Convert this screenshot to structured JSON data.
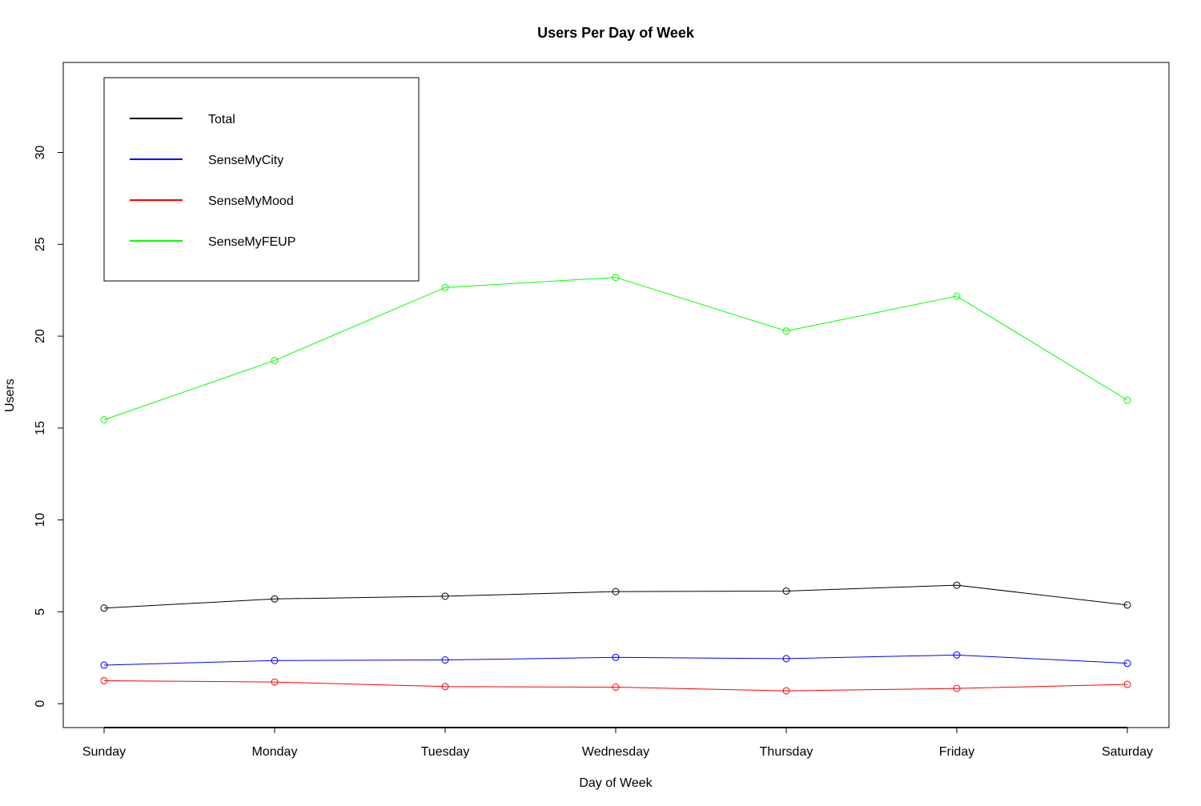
{
  "chart_data": {
    "type": "line",
    "title": "Users Per Day of Week",
    "xlabel": "Day of Week",
    "ylabel": "Users",
    "categories": [
      "Sunday",
      "Monday",
      "Tuesday",
      "Wednesday",
      "Thursday",
      "Friday",
      "Saturday"
    ],
    "ylim": [
      -1.3,
      34.9
    ],
    "yticks": [
      0,
      5,
      10,
      15,
      20,
      25,
      30
    ],
    "grid": false,
    "legend_position": "top-left",
    "markers": "open-circle",
    "series": [
      {
        "name": "Total",
        "color": "#000000",
        "values": [
          5.2,
          5.7,
          5.85,
          6.1,
          6.13,
          6.45,
          5.37
        ]
      },
      {
        "name": "SenseMyCity",
        "color": "#0000ff",
        "values": [
          2.1,
          2.35,
          2.38,
          2.52,
          2.45,
          2.65,
          2.2
        ]
      },
      {
        "name": "SenseMyMood",
        "color": "#ff0000",
        "values": [
          1.25,
          1.18,
          0.93,
          0.9,
          0.7,
          0.83,
          1.05
        ]
      },
      {
        "name": "SenseMyFEUP",
        "color": "#00ff00",
        "values": [
          15.45,
          18.68,
          22.65,
          23.2,
          20.28,
          22.18,
          16.52
        ]
      }
    ]
  }
}
